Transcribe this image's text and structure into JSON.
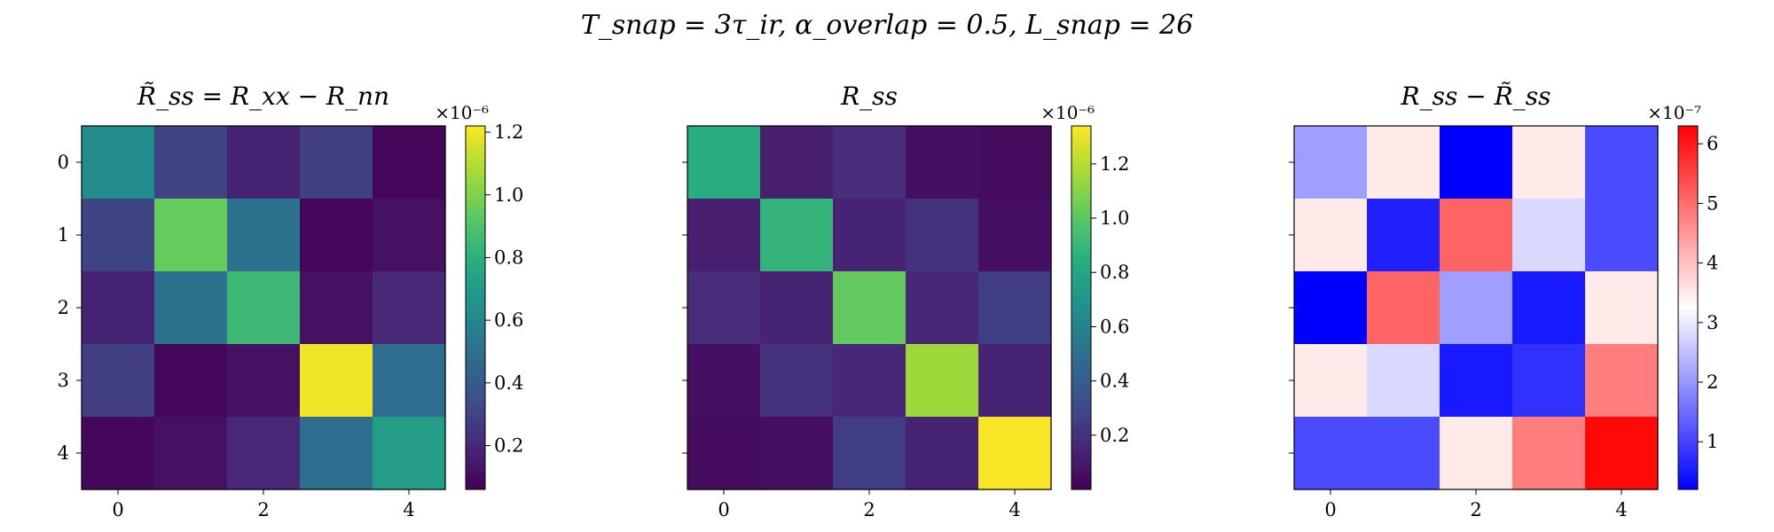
{
  "figure": {
    "suptitle": "T_snap = 3τ_ir,   α_overlap = 0.5,   L_snap = 26"
  },
  "chart_data": [
    {
      "type": "heatmap",
      "title": "R̃_ss = R_xx − R_nn",
      "colormap": "viridis",
      "x_ticks": [
        "0",
        "2",
        "4"
      ],
      "y_ticks": [
        "0",
        "1",
        "2",
        "3",
        "4"
      ],
      "colorbar": {
        "multiplier": "×10⁻⁶",
        "range": [
          0.06,
          1.22
        ],
        "tick_values": [
          0.2,
          0.4,
          0.6,
          0.8,
          1.0,
          1.2
        ],
        "tick_labels": [
          "0.2",
          "0.4",
          "0.6",
          "0.8",
          "1.0",
          "1.2"
        ]
      },
      "matrix": [
        [
          0.62,
          0.3,
          0.18,
          0.28,
          0.08
        ],
        [
          0.3,
          0.95,
          0.5,
          0.08,
          0.12
        ],
        [
          0.18,
          0.5,
          0.85,
          0.12,
          0.2
        ],
        [
          0.28,
          0.08,
          0.12,
          1.2,
          0.48
        ],
        [
          0.08,
          0.12,
          0.2,
          0.48,
          0.7
        ]
      ]
    },
    {
      "type": "heatmap",
      "title": "R_ss",
      "colormap": "viridis",
      "x_ticks": [
        "0",
        "2",
        "4"
      ],
      "y_ticks": [],
      "colorbar": {
        "multiplier": "×10⁻⁶",
        "range": [
          0.0,
          1.34
        ],
        "tick_values": [
          0.2,
          0.4,
          0.6,
          0.8,
          1.0,
          1.2
        ],
        "tick_labels": [
          "0.2",
          "0.4",
          "0.6",
          "0.8",
          "1.0",
          "1.2"
        ]
      },
      "matrix": [
        [
          0.85,
          0.12,
          0.18,
          0.06,
          0.04
        ],
        [
          0.12,
          0.88,
          0.14,
          0.2,
          0.06
        ],
        [
          0.18,
          0.14,
          1.02,
          0.16,
          0.25
        ],
        [
          0.06,
          0.2,
          0.16,
          1.15,
          0.14
        ],
        [
          0.04,
          0.06,
          0.25,
          0.14,
          1.33
        ]
      ]
    },
    {
      "type": "heatmap",
      "title": "R_ss − R̃_ss",
      "colormap": "bwr",
      "x_ticks": [
        "0",
        "2",
        "4"
      ],
      "y_ticks": [],
      "colorbar": {
        "multiplier": "×10⁻⁷",
        "range": [
          0.2,
          6.3
        ],
        "tick_values": [
          1,
          2,
          3,
          4,
          5,
          6
        ],
        "tick_labels": [
          "1",
          "2",
          "3",
          "4",
          "5",
          "6"
        ]
      },
      "matrix": [
        [
          2.1,
          3.5,
          0.2,
          3.5,
          1.1
        ],
        [
          3.5,
          0.6,
          5.1,
          2.8,
          1.1
        ],
        [
          0.2,
          5.1,
          2.1,
          0.5,
          3.5
        ],
        [
          3.5,
          2.8,
          0.5,
          0.8,
          4.8
        ],
        [
          1.1,
          1.1,
          3.5,
          4.8,
          6.2
        ]
      ]
    }
  ]
}
